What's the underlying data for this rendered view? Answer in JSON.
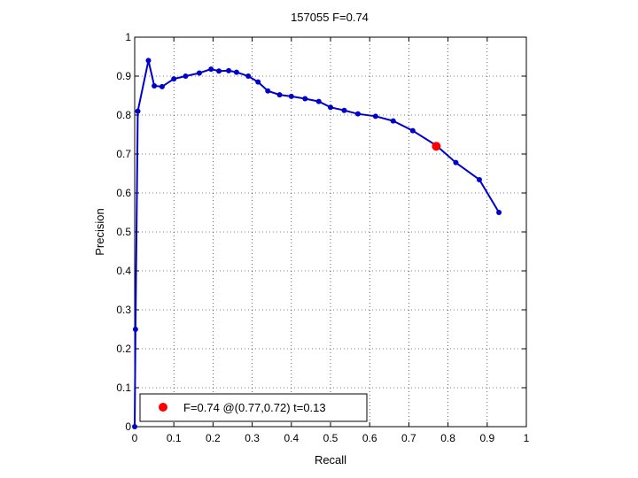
{
  "chart_data": {
    "type": "line",
    "title": "157055 F=0.74",
    "xlabel": "Recall",
    "ylabel": "Precision",
    "xlim": [
      0,
      1
    ],
    "ylim": [
      0,
      1
    ],
    "xticks": [
      0,
      0.1,
      0.2,
      0.3,
      0.4,
      0.5,
      0.6,
      0.7,
      0.8,
      0.9,
      1
    ],
    "yticks": [
      0,
      0.1,
      0.2,
      0.3,
      0.4,
      0.5,
      0.6,
      0.7,
      0.8,
      0.9,
      1
    ],
    "xtick_labels": [
      "0",
      "0.1",
      "0.2",
      "0.3",
      "0.4",
      "0.5",
      "0.6",
      "0.7",
      "0.8",
      "0.9",
      "1"
    ],
    "ytick_labels": [
      "0",
      "0.1",
      "0.2",
      "0.3",
      "0.4",
      "0.5",
      "0.6",
      "0.7",
      "0.8",
      "0.9",
      "1"
    ],
    "grid": true,
    "grid_style": "dotted",
    "legend_position": "bottom-left",
    "series": [
      {
        "color": "#0000cc",
        "x": [
          0.0,
          0.002,
          0.008,
          0.035,
          0.05,
          0.07,
          0.1,
          0.13,
          0.165,
          0.195,
          0.215,
          0.24,
          0.26,
          0.29,
          0.315,
          0.34,
          0.37,
          0.4,
          0.435,
          0.47,
          0.5,
          0.535,
          0.57,
          0.615,
          0.66,
          0.71,
          0.77,
          0.82,
          0.88,
          0.93
        ],
        "y": [
          0.0,
          0.25,
          0.81,
          0.94,
          0.875,
          0.873,
          0.893,
          0.9,
          0.908,
          0.918,
          0.913,
          0.914,
          0.91,
          0.9,
          0.885,
          0.862,
          0.852,
          0.848,
          0.842,
          0.835,
          0.82,
          0.812,
          0.803,
          0.797,
          0.785,
          0.76,
          0.722,
          0.678,
          0.634,
          0.55
        ]
      }
    ],
    "highlight_point": {
      "x": 0.77,
      "y": 0.72,
      "color": "#ff0000"
    },
    "legend_label": "F=0.74 @(0.77,0.72) t=0.13"
  }
}
